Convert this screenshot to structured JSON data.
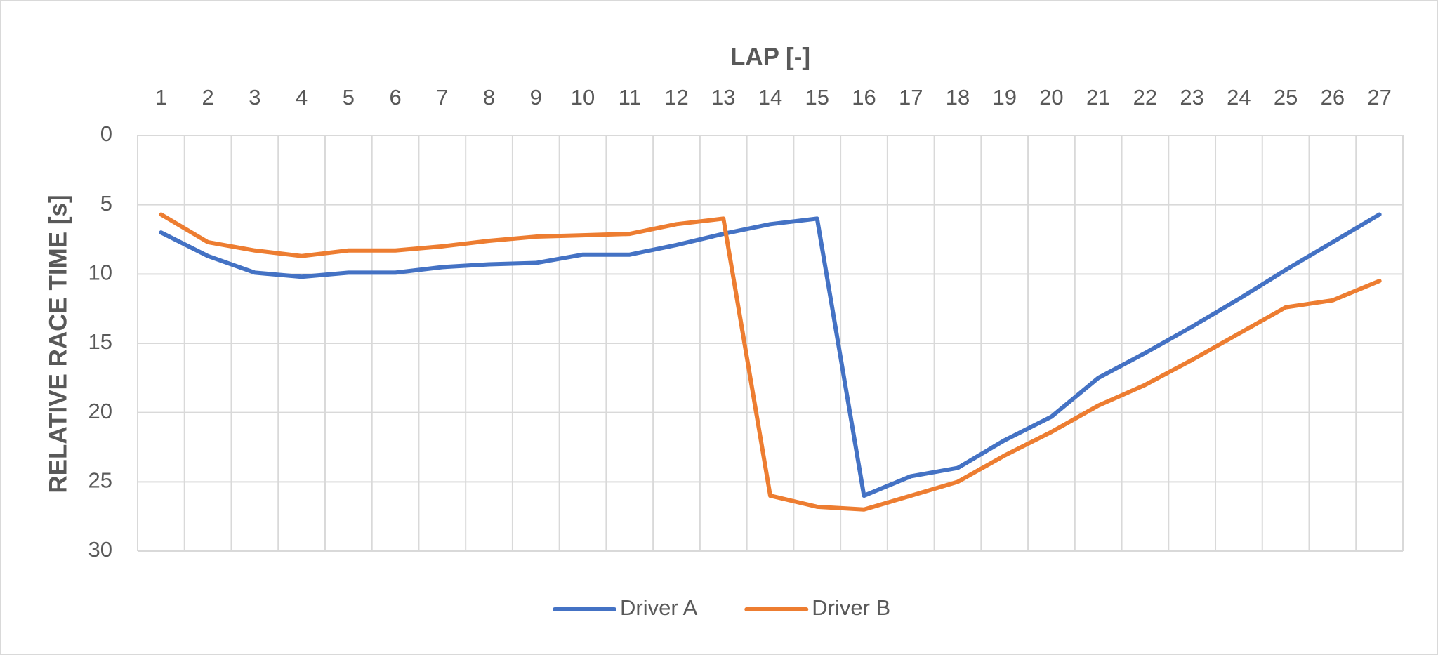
{
  "chart_data": {
    "type": "line",
    "x_label": "LAP [-]",
    "y_label": "RELATIVE RACE TIME [s]",
    "categories": [
      "1",
      "2",
      "3",
      "4",
      "5",
      "6",
      "7",
      "8",
      "9",
      "10",
      "11",
      "12",
      "13",
      "14",
      "15",
      "16",
      "17",
      "18",
      "19",
      "20",
      "21",
      "22",
      "23",
      "24",
      "25",
      "26",
      "27"
    ],
    "series": [
      {
        "name": "Driver A",
        "color": "#4472c4",
        "values": [
          7.0,
          8.7,
          9.9,
          10.2,
          9.9,
          9.9,
          9.5,
          9.3,
          9.2,
          8.6,
          8.6,
          7.9,
          7.1,
          6.4,
          6.0,
          26.0,
          24.6,
          24.0,
          22.0,
          20.3,
          17.5,
          15.7,
          13.8,
          11.8,
          9.7,
          7.7,
          5.7
        ]
      },
      {
        "name": "Driver B",
        "color": "#ed7d31",
        "values": [
          5.7,
          7.7,
          8.3,
          8.7,
          8.3,
          8.3,
          8.0,
          7.6,
          7.3,
          7.2,
          7.1,
          6.4,
          6.0,
          26.0,
          26.8,
          27.0,
          26.0,
          25.0,
          23.1,
          21.4,
          19.5,
          18.0,
          16.2,
          14.3,
          12.4,
          11.9,
          10.5
        ]
      }
    ],
    "ylim": [
      0,
      30
    ],
    "yticks": [
      0,
      5,
      10,
      15,
      20,
      25,
      30
    ],
    "y_inverted": true,
    "x_axis_position": "top",
    "grid": true,
    "legend": "bottom"
  }
}
